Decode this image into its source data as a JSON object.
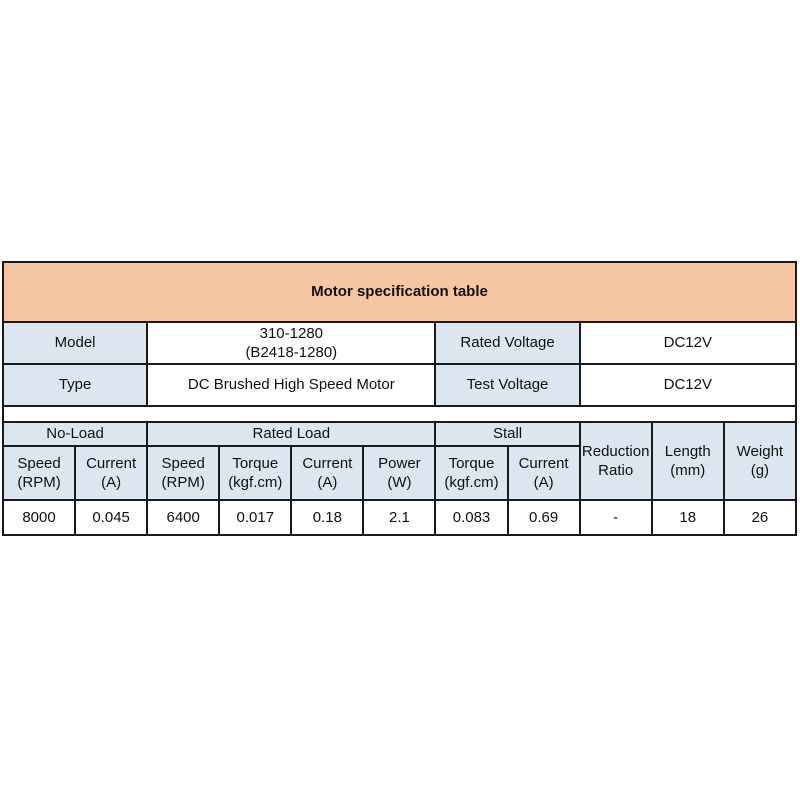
{
  "page": {
    "background": "#ffffff"
  },
  "table": {
    "title": "Motor specification table",
    "colors": {
      "title_bg": "#f6c5a1",
      "header_bg": "#dbe6f1",
      "cell_bg": "#ffffff",
      "border": "#1a1a1a",
      "text": "#101010"
    },
    "info": {
      "model_label": "Model",
      "model_value": "310-1280\n(B2418-1280)",
      "rated_voltage_label": "Rated Voltage",
      "rated_voltage_value": "DC12V",
      "type_label": "Type",
      "type_value": "DC Brushed High Speed Motor",
      "test_voltage_label": "Test Voltage",
      "test_voltage_value": "DC12V"
    },
    "spec": {
      "group_no_load": "No-Load",
      "group_rated_load": "Rated Load",
      "group_stall": "Stall",
      "reduction_ratio_header": "Reduction\nRatio",
      "length_header": "Length\n(mm)",
      "weight_header": "Weight\n(g)",
      "col_headers": [
        "Speed\n(RPM)",
        "Current\n(A)",
        "Speed\n(RPM)",
        "Torque\n(kgf.cm)",
        "Current\n(A)",
        "Power\n(W)",
        "Torque\n(kgf.cm)",
        "Current\n(A)"
      ],
      "values": [
        "8000",
        "0.045",
        "6400",
        "0.017",
        "0.18",
        "2.1",
        "0.083",
        "0.69",
        "-",
        "18",
        "26"
      ]
    }
  }
}
